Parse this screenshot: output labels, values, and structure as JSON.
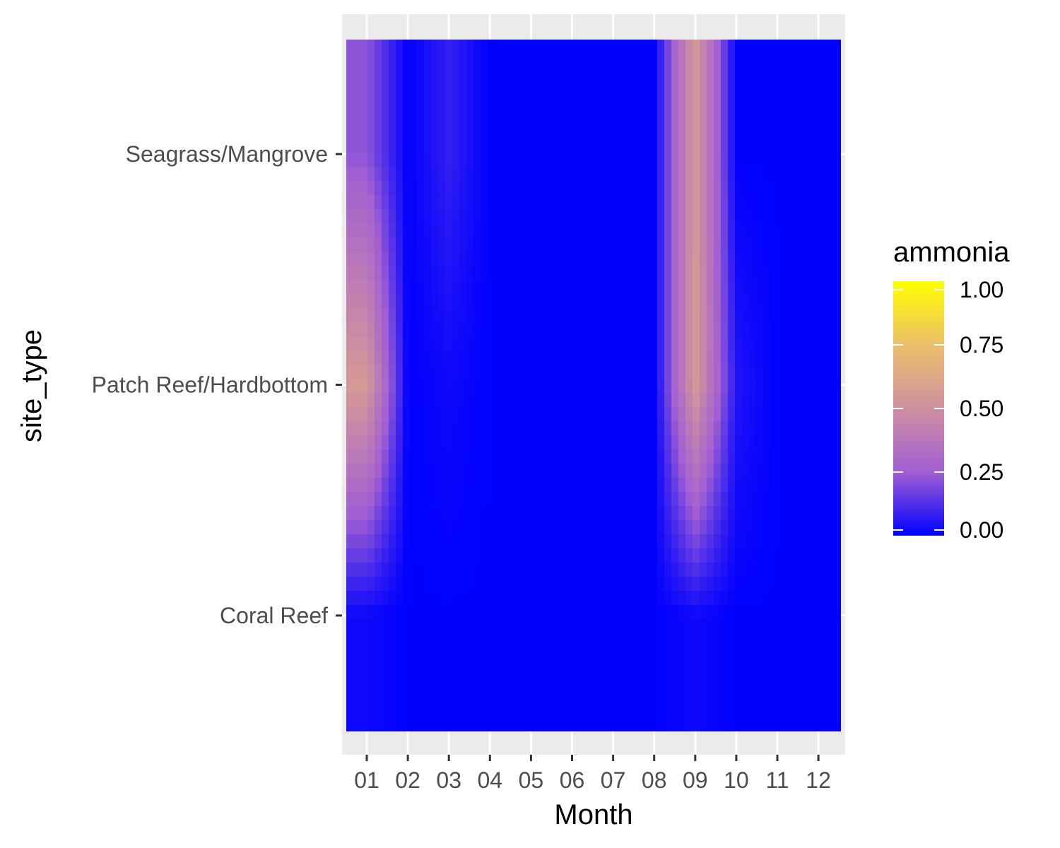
{
  "chart_data": {
    "type": "heatmap",
    "title": "",
    "xlabel": "Month",
    "ylabel": "site_type",
    "x_categories": [
      "01",
      "02",
      "03",
      "04",
      "05",
      "06",
      "07",
      "08",
      "09",
      "10",
      "11",
      "12"
    ],
    "y_categories": [
      "Coral Reef",
      "Patch Reef/Hardbottom",
      "Seagrass/Mangrove"
    ],
    "values": [
      [
        0.02,
        0.0,
        0.0,
        0.0,
        0.0,
        0.0,
        0.0,
        0.0,
        0.02,
        0.0,
        0.0,
        0.0
      ],
      [
        0.55,
        0.0,
        0.02,
        0.0,
        0.0,
        0.0,
        0.0,
        0.0,
        0.55,
        0.05,
        0.0,
        0.0
      ],
      [
        0.22,
        0.0,
        0.08,
        0.0,
        0.0,
        0.0,
        0.0,
        0.0,
        0.55,
        0.0,
        0.0,
        0.0
      ]
    ],
    "interpolated": true,
    "colorscale": {
      "name": "ammonia",
      "min": 0,
      "max": 1,
      "stops": [
        {
          "value": 0.0,
          "color": "#0000ff"
        },
        {
          "value": 0.25,
          "color": "#a15fd3"
        },
        {
          "value": 0.5,
          "color": "#cf8fa0"
        },
        {
          "value": 0.75,
          "color": "#ebbf6a"
        },
        {
          "value": 1.0,
          "color": "#ffff00"
        }
      ],
      "tick_labels": [
        "0.00",
        "0.25",
        "0.50",
        "0.75",
        "1.00"
      ],
      "tick_values": [
        0,
        0.25,
        0.5,
        0.75,
        1.0
      ]
    },
    "panel_background": "#ebebeb",
    "grid": true,
    "legend_position": "right"
  }
}
